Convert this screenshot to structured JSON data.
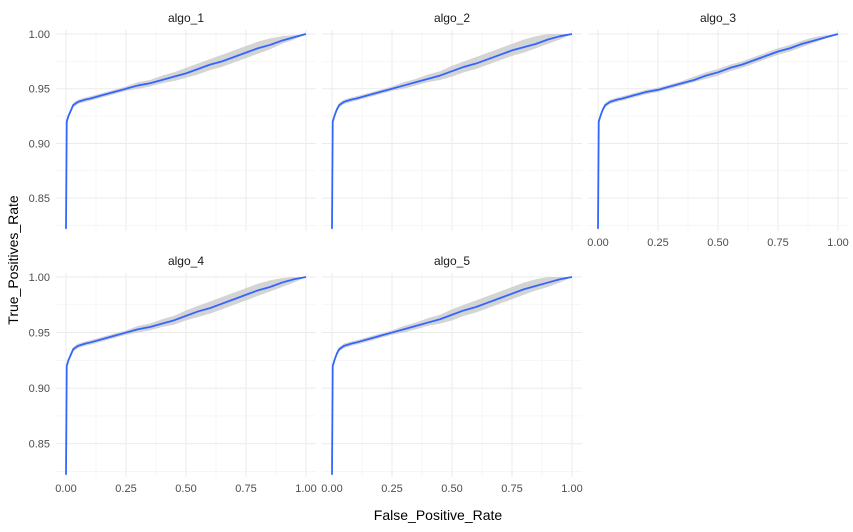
{
  "chart_data": {
    "type": "line",
    "layout": "facet_wrap",
    "xlabel": "False_Positive_Rate",
    "ylabel": "True_Positives_Rate",
    "xlim": [
      0,
      1
    ],
    "ylim": [
      0.82,
      1.0
    ],
    "x_ticks": [
      0,
      0.25,
      0.5,
      0.75,
      1
    ],
    "x_tick_labels": [
      "0.00",
      "0.25",
      "0.50",
      "0.75",
      "1.00"
    ],
    "y_ticks": [
      0.85,
      0.9,
      0.95,
      1.0
    ],
    "y_tick_labels": [
      "0.85",
      "0.90",
      "0.95",
      "1.00"
    ],
    "grid": true,
    "colors": {
      "line": "#3366ff",
      "ribbon": "#cccccc",
      "grid": "#ebebeb"
    },
    "x": [
      0.0,
      0.003,
      0.01,
      0.02,
      0.03,
      0.05,
      0.08,
      0.1,
      0.15,
      0.2,
      0.25,
      0.3,
      0.35,
      0.4,
      0.45,
      0.5,
      0.55,
      0.6,
      0.65,
      0.7,
      0.75,
      0.8,
      0.85,
      0.9,
      0.95,
      1.0
    ],
    "panels": [
      {
        "name": "algo_1",
        "values": [
          0.822,
          0.92,
          0.925,
          0.93,
          0.935,
          0.938,
          0.94,
          0.941,
          0.944,
          0.947,
          0.95,
          0.953,
          0.955,
          0.958,
          0.961,
          0.964,
          0.968,
          0.972,
          0.975,
          0.979,
          0.983,
          0.987,
          0.99,
          0.994,
          0.997,
          1.0
        ],
        "lower": [
          0.822,
          0.918,
          0.923,
          0.928,
          0.933,
          0.936,
          0.938,
          0.939,
          0.942,
          0.945,
          0.948,
          0.95,
          0.952,
          0.955,
          0.957,
          0.96,
          0.963,
          0.967,
          0.97,
          0.974,
          0.978,
          0.982,
          0.986,
          0.991,
          0.995,
          1.0
        ],
        "upper": [
          0.822,
          0.922,
          0.927,
          0.932,
          0.937,
          0.94,
          0.942,
          0.943,
          0.946,
          0.949,
          0.952,
          0.956,
          0.958,
          0.962,
          0.965,
          0.969,
          0.973,
          0.977,
          0.981,
          0.985,
          0.989,
          0.993,
          0.996,
          0.998,
          0.999,
          1.0
        ]
      },
      {
        "name": "algo_2",
        "values": [
          0.822,
          0.92,
          0.925,
          0.931,
          0.935,
          0.938,
          0.94,
          0.941,
          0.944,
          0.947,
          0.95,
          0.953,
          0.956,
          0.959,
          0.962,
          0.966,
          0.97,
          0.973,
          0.977,
          0.981,
          0.985,
          0.988,
          0.991,
          0.995,
          0.998,
          1.0
        ],
        "lower": [
          0.822,
          0.918,
          0.923,
          0.929,
          0.933,
          0.936,
          0.938,
          0.939,
          0.942,
          0.945,
          0.948,
          0.95,
          0.953,
          0.956,
          0.958,
          0.961,
          0.965,
          0.968,
          0.972,
          0.976,
          0.98,
          0.983,
          0.987,
          0.991,
          0.995,
          1.0
        ],
        "upper": [
          0.822,
          0.922,
          0.927,
          0.933,
          0.937,
          0.94,
          0.942,
          0.943,
          0.946,
          0.949,
          0.952,
          0.956,
          0.959,
          0.963,
          0.966,
          0.971,
          0.975,
          0.979,
          0.983,
          0.987,
          0.991,
          0.995,
          0.998,
          1.0,
          1.0,
          1.0
        ]
      },
      {
        "name": "algo_3",
        "values": [
          0.822,
          0.92,
          0.925,
          0.931,
          0.935,
          0.938,
          0.94,
          0.941,
          0.944,
          0.947,
          0.949,
          0.952,
          0.955,
          0.958,
          0.962,
          0.965,
          0.969,
          0.972,
          0.976,
          0.98,
          0.984,
          0.987,
          0.991,
          0.994,
          0.997,
          1.0
        ],
        "lower": [
          0.822,
          0.918,
          0.923,
          0.929,
          0.933,
          0.936,
          0.938,
          0.939,
          0.942,
          0.945,
          0.947,
          0.95,
          0.953,
          0.956,
          0.959,
          0.962,
          0.966,
          0.969,
          0.973,
          0.977,
          0.981,
          0.984,
          0.988,
          0.992,
          0.996,
          1.0
        ],
        "upper": [
          0.822,
          0.922,
          0.927,
          0.933,
          0.937,
          0.94,
          0.942,
          0.943,
          0.946,
          0.949,
          0.951,
          0.954,
          0.957,
          0.961,
          0.965,
          0.968,
          0.972,
          0.975,
          0.979,
          0.983,
          0.987,
          0.99,
          0.994,
          0.997,
          0.999,
          1.0
        ]
      },
      {
        "name": "algo_4",
        "values": [
          0.822,
          0.92,
          0.925,
          0.93,
          0.935,
          0.938,
          0.94,
          0.941,
          0.944,
          0.947,
          0.95,
          0.953,
          0.955,
          0.958,
          0.961,
          0.965,
          0.969,
          0.972,
          0.976,
          0.98,
          0.984,
          0.988,
          0.991,
          0.995,
          0.998,
          1.0
        ],
        "lower": [
          0.822,
          0.918,
          0.923,
          0.928,
          0.933,
          0.936,
          0.938,
          0.939,
          0.942,
          0.945,
          0.948,
          0.95,
          0.952,
          0.955,
          0.957,
          0.961,
          0.964,
          0.967,
          0.971,
          0.975,
          0.979,
          0.983,
          0.987,
          0.991,
          0.995,
          1.0
        ],
        "upper": [
          0.822,
          0.922,
          0.927,
          0.932,
          0.937,
          0.94,
          0.942,
          0.943,
          0.946,
          0.949,
          0.952,
          0.956,
          0.958,
          0.962,
          0.965,
          0.97,
          0.974,
          0.978,
          0.982,
          0.986,
          0.99,
          0.994,
          0.997,
          0.999,
          1.0,
          1.0
        ]
      },
      {
        "name": "algo_5",
        "values": [
          0.822,
          0.92,
          0.925,
          0.931,
          0.935,
          0.938,
          0.94,
          0.941,
          0.944,
          0.947,
          0.95,
          0.953,
          0.956,
          0.959,
          0.962,
          0.966,
          0.97,
          0.973,
          0.977,
          0.981,
          0.985,
          0.989,
          0.992,
          0.995,
          0.998,
          1.0
        ],
        "lower": [
          0.822,
          0.918,
          0.923,
          0.929,
          0.933,
          0.936,
          0.938,
          0.939,
          0.942,
          0.945,
          0.948,
          0.95,
          0.953,
          0.956,
          0.958,
          0.961,
          0.965,
          0.968,
          0.972,
          0.976,
          0.98,
          0.984,
          0.988,
          0.991,
          0.995,
          1.0
        ],
        "upper": [
          0.822,
          0.922,
          0.927,
          0.933,
          0.937,
          0.94,
          0.942,
          0.943,
          0.946,
          0.949,
          0.952,
          0.956,
          0.959,
          0.963,
          0.966,
          0.971,
          0.975,
          0.979,
          0.983,
          0.987,
          0.991,
          0.995,
          0.998,
          1.0,
          1.0,
          1.0
        ]
      }
    ]
  }
}
